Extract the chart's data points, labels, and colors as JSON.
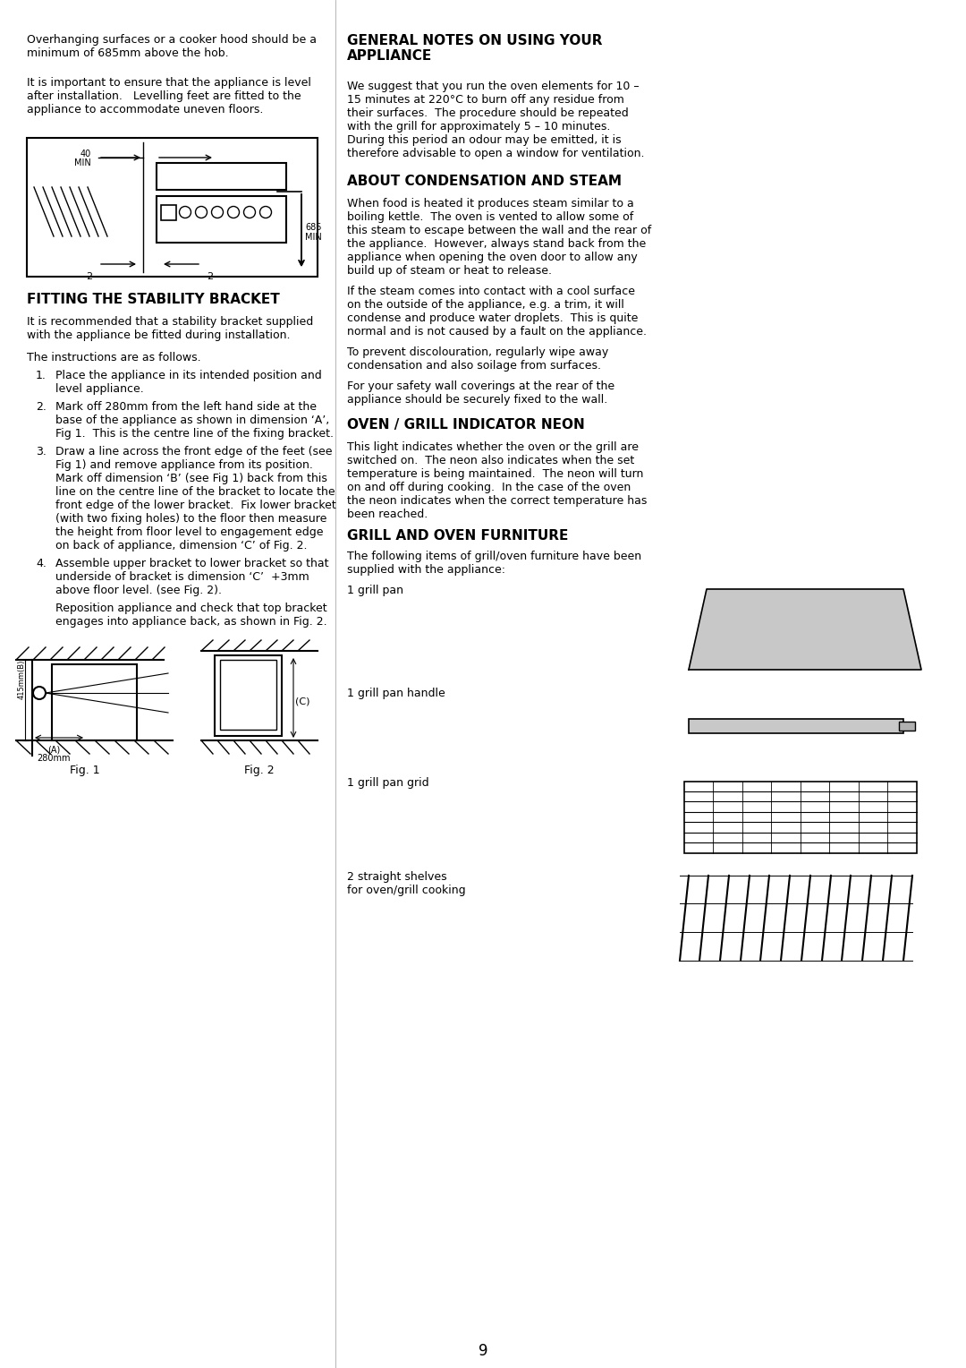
{
  "page_width": 10.8,
  "page_height": 15.28,
  "bg_color": "#ffffff",
  "text_color": "#000000",
  "page_number": "9",
  "left_col": {
    "intro_para1": "Overhanging surfaces or a cooker hood should be a\nminimum of 685mm above the hob.",
    "intro_para2": "It is important to ensure that the appliance is level\nafter installation.   Levelling feet are fitted to the\nappliance to accommodate uneven floors.",
    "section1_title": "FITTING THE STABILITY BRACKET",
    "section1_para1": "It is recommended that a stability bracket supplied\nwith the appliance be fitted during installation.",
    "section1_para2": "The instructions are as follows.",
    "item1": "Place the appliance in its intended position and\nlevel appliance.",
    "item2": "Mark off 280mm from the left hand side at the\nbase of the appliance as shown in dimension ‘A’,\nFig 1.  This is the centre line of the fixing bracket.",
    "item3": "Draw a line across the front edge of the feet (see\nFig 1) and remove appliance from its position.\nMark off dimension ‘B’ (see Fig 1) back from this\nline on the centre line of the bracket to locate the\nfront edge of the lower bracket.  Fix lower bracket\n(with two fixing holes) to the floor then measure\nthe height from floor level to engagement edge\non back of appliance, dimension ‘C’ of Fig. 2.",
    "item4": "Assemble upper bracket to lower bracket so that\nunderside of bracket is dimension ‘C’  +3mm\nabove floor level. (see Fig. 2).",
    "item4b": "Reposition appliance and check that top bracket\nengages into appliance back, as shown in Fig. 2.",
    "fig1_label": "Fig. 1",
    "fig2_label": "Fig. 2"
  },
  "right_col": {
    "section2_title": "GENERAL NOTES ON USING YOUR\nAPPLIANCE",
    "section2_para1": "We suggest that you run the oven elements for 10 –\n15 minutes at 220°C to burn off any residue from\ntheir surfaces.  The procedure should be repeated\nwith the grill for approximately 5 – 10 minutes.\nDuring this period an odour may be emitted, it is\ntherefore advisable to open a window for ventilation.",
    "section3_title": "ABOUT CONDENSATION AND STEAM",
    "section3_para1": "When food is heated it produces steam similar to a\nboiling kettle.  The oven is vented to allow some of\nthis steam to escape between the wall and the rear of\nthe appliance.  However, always stand back from the\nappliance when opening the oven door to allow any\nbuild up of steam or heat to release.",
    "section3_para2": "If the steam comes into contact with a cool surface\non the outside of the appliance, e.g. a trim, it will\ncondense and produce water droplets.  This is quite\nnormal and is not caused by a fault on the appliance.",
    "section3_para3": "To prevent discolouration, regularly wipe away\ncondensation and also soilage from surfaces.",
    "section3_para4": "For your safety wall coverings at the rear of the\nappliance should be securely fixed to the wall.",
    "section4_title": "OVEN / GRILL INDICATOR NEON",
    "section4_para1": "This light indicates whether the oven or the grill are\nswitched on.  The neon also indicates when the set\ntemperature is being maintained.  The neon will turn\non and off during cooking.  In the case of the oven\nthe neon indicates when the correct temperature has\nbeen reached.",
    "section5_title": "GRILL AND OVEN FURNITURE",
    "section5_para1": "The following items of grill/oven furniture have been\nsupplied with the appliance:",
    "item_a": "1 grill pan",
    "item_b": "1 grill pan handle",
    "item_c": "1 grill pan grid",
    "item_d": "2 straight shelves\nfor oven/grill cooking"
  }
}
